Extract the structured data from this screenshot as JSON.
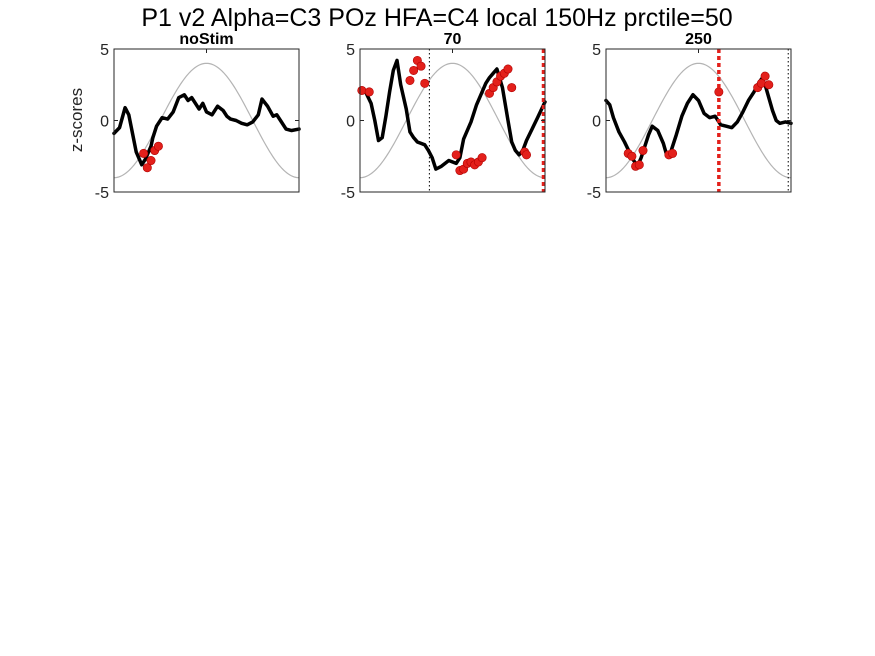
{
  "figure": {
    "title": "P1 v2 Alpha=C3 POz HFA=C4 local 150Hz prctile=50",
    "ylabel": "z-scores"
  },
  "chart_data": [
    {
      "type": "line",
      "title": "noStim",
      "ylim": [
        -5,
        5
      ],
      "xlim": [
        0,
        1
      ],
      "yticks": [
        "-5",
        "0",
        "5"
      ],
      "signal_color": "#000000",
      "reference_color": "#b4b4b4",
      "highlight_color": "#e3201b",
      "signal": {
        "x": [
          0,
          0.03,
          0.06,
          0.08,
          0.1,
          0.12,
          0.15,
          0.17,
          0.19,
          0.2,
          0.21,
          0.23,
          0.26,
          0.29,
          0.32,
          0.35,
          0.38,
          0.4,
          0.42,
          0.44,
          0.46,
          0.48,
          0.5,
          0.53,
          0.56,
          0.59,
          0.61,
          0.63,
          0.66,
          0.69,
          0.72,
          0.75,
          0.78,
          0.8,
          0.83,
          0.86,
          0.88,
          0.9,
          0.93,
          0.96,
          1.0
        ],
        "y": [
          -0.9,
          -0.5,
          0.9,
          0.4,
          -0.9,
          -2.2,
          -3.1,
          -2.7,
          -2.1,
          -1.8,
          -1.2,
          -0.4,
          0.2,
          0.1,
          0.6,
          1.6,
          1.8,
          1.4,
          1.6,
          1.2,
          0.8,
          1.2,
          0.6,
          0.4,
          1.0,
          0.7,
          0.3,
          0.1,
          0.0,
          -0.2,
          -0.3,
          -0.1,
          0.4,
          1.5,
          1.0,
          0.3,
          0.4,
          0.0,
          -0.6,
          -0.7,
          -0.6
        ]
      },
      "highlights": [
        [
          0.16,
          -2.3
        ],
        [
          0.18,
          -3.3
        ],
        [
          0.2,
          -2.8
        ],
        [
          0.22,
          -2.1
        ],
        [
          0.24,
          -1.8
        ]
      ],
      "markers": []
    },
    {
      "type": "line",
      "title": "70",
      "ylim": [
        -5,
        5
      ],
      "xlim": [
        0,
        1
      ],
      "yticks": [
        "-5",
        "0",
        "5"
      ],
      "signal_color": "#000000",
      "reference_color": "#b4b4b4",
      "highlight_color": "#e3201b",
      "signal": {
        "x": [
          0,
          0.03,
          0.06,
          0.08,
          0.1,
          0.12,
          0.14,
          0.16,
          0.18,
          0.2,
          0.22,
          0.25,
          0.27,
          0.29,
          0.31,
          0.33,
          0.35,
          0.37,
          0.39,
          0.41,
          0.44,
          0.48,
          0.52,
          0.54,
          0.56,
          0.6,
          0.63,
          0.66,
          0.68,
          0.7,
          0.72,
          0.74,
          0.77,
          0.8,
          0.82,
          0.84,
          0.86,
          0.88,
          0.9,
          0.93,
          0.96,
          1.0
        ],
        "y": [
          2.1,
          2.0,
          1.2,
          0.0,
          -1.4,
          -1.2,
          0.3,
          2.0,
          3.5,
          4.2,
          2.5,
          0.8,
          -0.8,
          -1.2,
          -1.5,
          -1.6,
          -1.7,
          -2.1,
          -2.6,
          -3.4,
          -3.2,
          -2.8,
          -3.0,
          -2.6,
          -1.3,
          -0.1,
          1.1,
          2.0,
          2.6,
          3.0,
          3.3,
          3.6,
          2.3,
          0.0,
          -1.5,
          -2.1,
          -2.4,
          -2.1,
          -1.4,
          -0.6,
          0.2,
          1.3
        ]
      },
      "highlights": [
        [
          0.01,
          2.1
        ],
        [
          0.05,
          2.0
        ],
        [
          0.27,
          2.8
        ],
        [
          0.29,
          3.5
        ],
        [
          0.31,
          4.2
        ],
        [
          0.33,
          3.8
        ],
        [
          0.35,
          2.6
        ],
        [
          0.52,
          -2.4
        ],
        [
          0.54,
          -3.5
        ],
        [
          0.56,
          -3.4
        ],
        [
          0.58,
          -3.0
        ],
        [
          0.6,
          -2.9
        ],
        [
          0.62,
          -3.1
        ],
        [
          0.64,
          -2.9
        ],
        [
          0.66,
          -2.6
        ],
        [
          0.7,
          1.9
        ],
        [
          0.72,
          2.3
        ],
        [
          0.74,
          2.7
        ],
        [
          0.76,
          3.1
        ],
        [
          0.78,
          3.3
        ],
        [
          0.8,
          3.6
        ],
        [
          0.82,
          2.3
        ],
        [
          0.89,
          -2.2
        ],
        [
          0.9,
          -2.4
        ]
      ],
      "markers": [
        {
          "x": 0.375,
          "style": "dotted-black"
        },
        {
          "x": 1.0,
          "style": "dashed-red"
        }
      ]
    },
    {
      "type": "line",
      "title": "250",
      "ylim": [
        -5,
        5
      ],
      "xlim": [
        0,
        1
      ],
      "yticks": [
        "-5",
        "0",
        "5"
      ],
      "signal_color": "#000000",
      "reference_color": "#b4b4b4",
      "highlight_color": "#e3201b",
      "signal": {
        "x": [
          0,
          0.02,
          0.04,
          0.07,
          0.1,
          0.13,
          0.15,
          0.17,
          0.19,
          0.21,
          0.23,
          0.25,
          0.28,
          0.31,
          0.33,
          0.35,
          0.38,
          0.41,
          0.44,
          0.47,
          0.5,
          0.53,
          0.56,
          0.59,
          0.62,
          0.65,
          0.68,
          0.71,
          0.74,
          0.77,
          0.8,
          0.82,
          0.84,
          0.86,
          0.88,
          0.9,
          0.92,
          0.94,
          0.97,
          1.0
        ],
        "y": [
          1.4,
          1.1,
          0.2,
          -0.8,
          -1.5,
          -2.3,
          -2.8,
          -3.2,
          -2.6,
          -1.8,
          -1.0,
          -0.4,
          -0.7,
          -1.6,
          -2.5,
          -2.2,
          -1.0,
          0.3,
          1.2,
          1.8,
          1.4,
          0.5,
          0.2,
          0.3,
          -0.3,
          -0.4,
          -0.5,
          -0.1,
          0.6,
          1.4,
          2.0,
          2.5,
          2.9,
          2.5,
          1.6,
          0.7,
          0.0,
          -0.2,
          -0.1,
          -0.2
        ]
      },
      "highlights": [
        [
          0.12,
          -2.3
        ],
        [
          0.14,
          -2.5
        ],
        [
          0.16,
          -3.2
        ],
        [
          0.18,
          -3.1
        ],
        [
          0.2,
          -2.1
        ],
        [
          0.34,
          -2.4
        ],
        [
          0.36,
          -2.3
        ],
        [
          0.61,
          2.0
        ],
        [
          0.82,
          2.3
        ],
        [
          0.84,
          2.6
        ],
        [
          0.86,
          3.1
        ],
        [
          0.88,
          2.5
        ]
      ],
      "markers": [
        {
          "x": 0.61,
          "style": "dashed-red"
        },
        {
          "x": 0.985,
          "style": "dotted-black"
        }
      ]
    }
  ]
}
